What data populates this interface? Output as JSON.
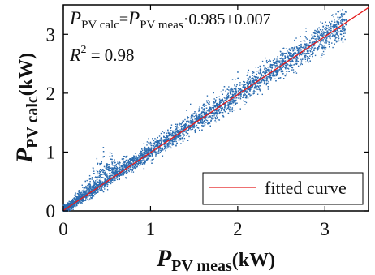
{
  "chart_data": {
    "type": "scatter",
    "title": "",
    "xlabel": {
      "main": "P",
      "sub": "PV meas",
      "unit": "(kW)"
    },
    "ylabel": {
      "main": "P",
      "sub": "PV calc",
      "unit": "(kW)"
    },
    "xlim": [
      0,
      3.5
    ],
    "ylim": [
      0,
      3.5
    ],
    "xticks": [
      0,
      1,
      2,
      3
    ],
    "yticks": [
      0,
      1,
      2,
      3
    ],
    "xtick_labels": [
      "0",
      "1",
      "2",
      "3"
    ],
    "ytick_labels": [
      "0",
      "1",
      "2",
      "3"
    ],
    "grid": false,
    "annotations": {
      "equation": {
        "lhs_main": "P",
        "lhs_sub": "PV calc",
        "eq": "=",
        "rhs_main": "P",
        "rhs_sub": "PV meas",
        "rhs_tail": "·0.985+0.007"
      },
      "r2": {
        "main": "R",
        "sup": "2",
        "tail": " = 0.98"
      }
    },
    "fit": {
      "slope": 0.985,
      "intercept": 0.007,
      "r2": 0.98,
      "color": "#e41a1c"
    },
    "series": [
      {
        "name": "",
        "color": "#2b6cb0",
        "approx_count": 5000,
        "x_range": [
          0,
          3.25
        ],
        "note": "dense cloud along fitted line, upward spread near x 0.2–0.8"
      }
    ],
    "legend": {
      "position": "bottom-right",
      "entries": [
        {
          "label": "fitted curve",
          "color": "#e41a1c"
        }
      ]
    }
  }
}
